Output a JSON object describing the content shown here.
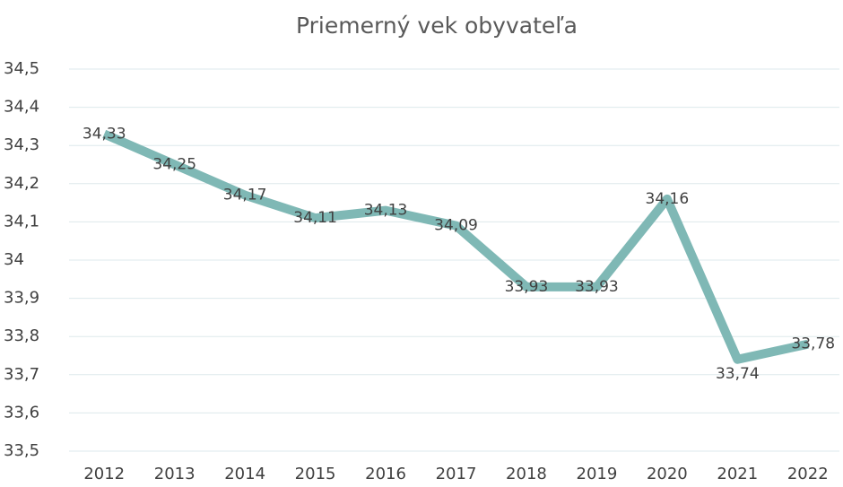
{
  "chart_data": {
    "type": "line",
    "title": "Priemerný vek obyvateľa",
    "categories": [
      "2012",
      "2013",
      "2014",
      "2015",
      "2016",
      "2017",
      "2018",
      "2019",
      "2020",
      "2021",
      "2022"
    ],
    "series": [
      {
        "name": "Priemerný vek",
        "color": "#7fb8b5",
        "values": [
          34.33,
          34.25,
          34.17,
          34.11,
          34.13,
          34.09,
          33.93,
          33.93,
          34.16,
          33.74,
          33.78
        ],
        "value_labels": [
          "34,33",
          "34,25",
          "34,17",
          "34,11",
          "34,13",
          "34,09",
          "33,93",
          "33,93",
          "34,16",
          "33,74",
          "33,78"
        ]
      }
    ],
    "ylim": [
      33.5,
      34.5
    ],
    "yticks": [
      {
        "value": 33.5,
        "label": "33,5"
      },
      {
        "value": 33.6,
        "label": "33,6"
      },
      {
        "value": 33.7,
        "label": "33,7"
      },
      {
        "value": 33.8,
        "label": "33,8"
      },
      {
        "value": 33.9,
        "label": "33,9"
      },
      34,
      {
        "value": 34.1,
        "label": "34,1"
      },
      {
        "value": 34.2,
        "label": "34,2"
      },
      {
        "value": 34.3,
        "label": "34,3"
      },
      {
        "value": 34.4,
        "label": "34,4"
      },
      {
        "value": 34.5,
        "label": "34,5"
      }
    ],
    "grid": true
  }
}
